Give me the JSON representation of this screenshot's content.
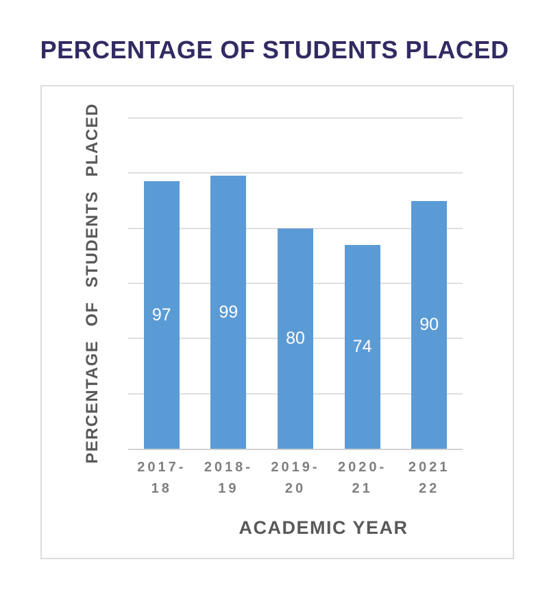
{
  "page": {
    "title": "PERCENTAGE OF STUDENTS PLACED",
    "title_color": "#312b63",
    "background": "#ffffff"
  },
  "chart": {
    "bar_color": "#5b9bd5",
    "data_label_color": "#ffffff",
    "axis_title_color": "#595959",
    "tick_label_color": "#7f7f7f",
    "gridline_color": "#dfdfdf",
    "box_border_color": "#dcdcdc"
  },
  "chart_data": {
    "type": "bar",
    "title": "PERCENTAGE OF STUDENTS PLACED",
    "categories": [
      "2017-18",
      "2018-19",
      "2019-20",
      "2020-21",
      "2021-22"
    ],
    "values": [
      97,
      99,
      80,
      74,
      90
    ],
    "tick_lines": [
      [
        "2017-",
        "18"
      ],
      [
        "2018-",
        "19"
      ],
      [
        "2019-",
        "20"
      ],
      [
        "2020-",
        "21"
      ],
      [
        "2021",
        "22"
      ]
    ],
    "xlabel": "ACADEMIC YEAR",
    "ylabel": "PERCENTAGE OF STUDENTS PLACED",
    "ylim": [
      0,
      120
    ],
    "gridline_interval": 20,
    "grid": true,
    "y_tick_labels_shown": false,
    "legend": false,
    "data_labels_position": "center-inside"
  }
}
